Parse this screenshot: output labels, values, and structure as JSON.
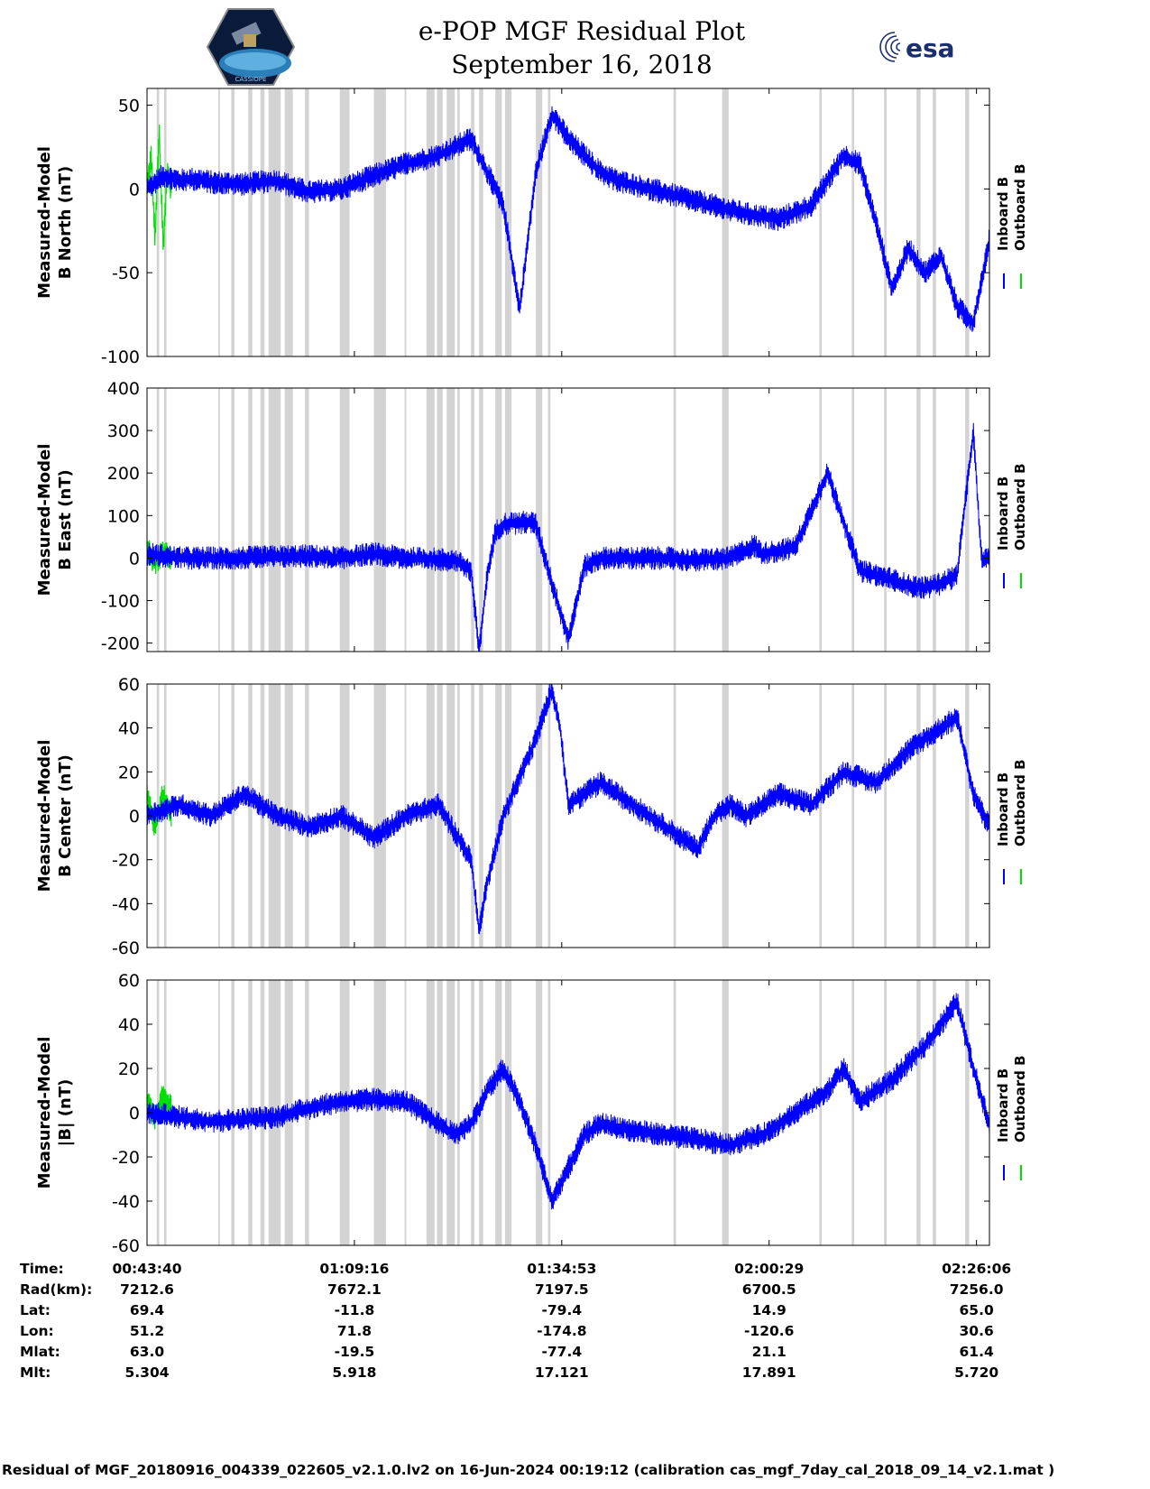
{
  "header": {
    "title_line1": "e-POP MGF Residual Plot",
    "title_line2": "September 16, 2018",
    "left_logo_text": "CASSIOPE",
    "right_logo_text": "esa"
  },
  "colors": {
    "inboard": "#0000ff",
    "outboard": "#00e000",
    "gap_shading": "#d3d3d3",
    "axis": "#000000"
  },
  "legend": {
    "placement": "right-outside",
    "inboard_label": "Inboard B",
    "outboard_label": "Outboard B"
  },
  "chart_data": [
    {
      "type": "line",
      "ylabel_line1": "Measured-Model",
      "ylabel_line2": "B North (nT)",
      "ylim": [
        -100,
        60
      ],
      "yticks": [
        50,
        0,
        -50,
        -100
      ],
      "x_ticks_min": [
        0,
        25.6,
        51.2,
        76.8,
        102.4
      ],
      "series": [
        {
          "name": "Inboard B",
          "x_min": [
            0,
            2,
            4,
            6,
            8,
            12,
            16,
            20,
            24,
            28,
            32,
            36,
            40,
            44,
            46,
            48,
            50,
            52,
            54,
            56,
            58,
            62,
            66,
            70,
            74,
            78,
            82,
            86,
            88,
            90,
            92,
            94,
            96,
            98,
            100,
            102,
            104
          ],
          "y": [
            0,
            8,
            5,
            6,
            4,
            3,
            5,
            -2,
            0,
            8,
            15,
            20,
            30,
            -10,
            -72,
            10,
            45,
            30,
            20,
            10,
            5,
            0,
            -5,
            -10,
            -15,
            -18,
            -10,
            20,
            15,
            -20,
            -60,
            -35,
            -50,
            -40,
            -70,
            -80,
            -30
          ]
        },
        {
          "name": "Outboard B",
          "x_min": [
            0,
            0.5,
            1,
            1.5,
            2,
            2.5,
            3
          ],
          "y": [
            0,
            20,
            -30,
            35,
            -35,
            10,
            0
          ]
        }
      ]
    },
    {
      "type": "line",
      "ylabel_line1": "Measured-Model",
      "ylabel_line2": "B East (nT)",
      "ylim": [
        -220,
        400
      ],
      "yticks": [
        400,
        300,
        200,
        100,
        0,
        -100,
        -200
      ],
      "series": [
        {
          "name": "Inboard B",
          "x_min": [
            0,
            4,
            10,
            20,
            24,
            28,
            32,
            38,
            40,
            41,
            42,
            43,
            44,
            47,
            48,
            50,
            52,
            54,
            56,
            60,
            64,
            68,
            72,
            75,
            76,
            80,
            84,
            88,
            90,
            92,
            94,
            96,
            98,
            100,
            102,
            103,
            104
          ],
          "y": [
            10,
            0,
            0,
            5,
            0,
            10,
            0,
            -5,
            -30,
            -220,
            -40,
            60,
            80,
            85,
            80,
            -60,
            -190,
            -20,
            0,
            0,
            0,
            -5,
            0,
            30,
            10,
            25,
            200,
            -30,
            -40,
            -50,
            -65,
            -70,
            -60,
            -40,
            300,
            0,
            -5
          ]
        },
        {
          "name": "Outboard B",
          "x_min": [
            0,
            1,
            2,
            3
          ],
          "y": [
            20,
            -10,
            15,
            0
          ]
        }
      ]
    },
    {
      "type": "line",
      "ylabel_line1": "Measured-Model",
      "ylabel_line2": "B Center (nT)",
      "ylim": [
        -60,
        60
      ],
      "yticks": [
        60,
        40,
        20,
        0,
        -20,
        -40,
        -60
      ],
      "series": [
        {
          "name": "Inboard B",
          "x_min": [
            0,
            4,
            8,
            12,
            16,
            20,
            24,
            28,
            32,
            36,
            40,
            41,
            42,
            44,
            48,
            50,
            51,
            52,
            54,
            56,
            58,
            60,
            64,
            68,
            70,
            72,
            74,
            78,
            82,
            86,
            90,
            94,
            98,
            100,
            102,
            104
          ],
          "y": [
            0,
            5,
            0,
            10,
            0,
            -5,
            0,
            -10,
            0,
            5,
            -20,
            -52,
            -30,
            0,
            35,
            58,
            40,
            5,
            10,
            15,
            10,
            5,
            -5,
            -15,
            0,
            5,
            0,
            10,
            5,
            20,
            15,
            30,
            40,
            45,
            10,
            -5
          ]
        },
        {
          "name": "Outboard B",
          "x_min": [
            0,
            1,
            2,
            3
          ],
          "y": [
            10,
            -5,
            10,
            0
          ]
        }
      ]
    },
    {
      "type": "line",
      "ylabel_line1": "Measured-Model",
      "ylabel_line2": "|B| (nT)",
      "ylim": [
        -60,
        60
      ],
      "yticks": [
        60,
        40,
        20,
        0,
        -20,
        -40,
        -60
      ],
      "series": [
        {
          "name": "Inboard B",
          "x_min": [
            0,
            4,
            8,
            12,
            16,
            20,
            24,
            28,
            32,
            36,
            38,
            40,
            42,
            44,
            46,
            48,
            50,
            52,
            54,
            56,
            60,
            64,
            68,
            72,
            74,
            76,
            80,
            84,
            86,
            88,
            92,
            96,
            100,
            102,
            104
          ],
          "y": [
            0,
            -2,
            -4,
            -3,
            -2,
            2,
            5,
            6,
            5,
            -5,
            -10,
            -5,
            10,
            20,
            5,
            -15,
            -40,
            -25,
            -10,
            -5,
            -8,
            -10,
            -12,
            -15,
            -12,
            -10,
            0,
            10,
            20,
            5,
            15,
            30,
            50,
            20,
            -5
          ]
        },
        {
          "name": "Outboard B",
          "x_min": [
            0,
            1,
            2,
            3
          ],
          "y": [
            5,
            -2,
            8,
            2
          ]
        }
      ]
    }
  ],
  "gap_bands_min": [
    [
      1.2,
      1.5
    ],
    [
      2.1,
      2.4
    ],
    [
      8.8,
      9.0
    ],
    [
      10.4,
      10.8
    ],
    [
      12.5,
      13.0
    ],
    [
      14.0,
      14.5
    ],
    [
      15.0,
      16.5
    ],
    [
      17.0,
      18.0
    ],
    [
      19.5,
      20.0
    ],
    [
      23.8,
      25.0
    ],
    [
      28.0,
      29.5
    ],
    [
      31.8,
      32.0
    ],
    [
      34.5,
      35.5
    ],
    [
      35.8,
      36.5
    ],
    [
      37.0,
      38.0
    ],
    [
      38.3,
      38.6
    ],
    [
      40.0,
      40.4
    ],
    [
      41.0,
      41.5
    ],
    [
      43.0,
      43.8
    ],
    [
      44.2,
      45.0
    ],
    [
      48.0,
      48.8
    ],
    [
      49.5,
      49.8
    ],
    [
      65.0,
      65.3
    ],
    [
      71.0,
      71.8
    ],
    [
      83.0,
      83.3
    ],
    [
      87.0,
      87.3
    ],
    [
      91.0,
      91.3
    ],
    [
      95.0,
      95.5
    ],
    [
      97.0,
      97.4
    ],
    [
      101.0,
      101.5
    ]
  ],
  "orbit_table": {
    "row_labels": [
      "Time:",
      "Rad(km):",
      "Lat:",
      "Lon:",
      "Mlat:",
      "Mlt:"
    ],
    "columns": [
      [
        "00:43:40",
        "7212.6",
        "69.4",
        "51.2",
        "63.0",
        "5.304"
      ],
      [
        "01:09:16",
        "7672.1",
        "-11.8",
        "71.8",
        "-19.5",
        "5.918"
      ],
      [
        "01:34:53",
        "7197.5",
        "-79.4",
        "-174.8",
        "-77.4",
        "17.121"
      ],
      [
        "02:00:29",
        "6700.5",
        "14.9",
        "-120.6",
        "21.1",
        "17.891"
      ],
      [
        "02:26:06",
        "7256.0",
        "65.0",
        "30.6",
        "61.4",
        "5.720"
      ]
    ]
  },
  "footer": {
    "text": "Residual of MGF_20180916_004339_022605_v2.1.0.lv2 on 16-Jun-2024 00:19:12 (calibration cas_mgf_7day_cal_2018_09_14_v2.1.mat )"
  }
}
